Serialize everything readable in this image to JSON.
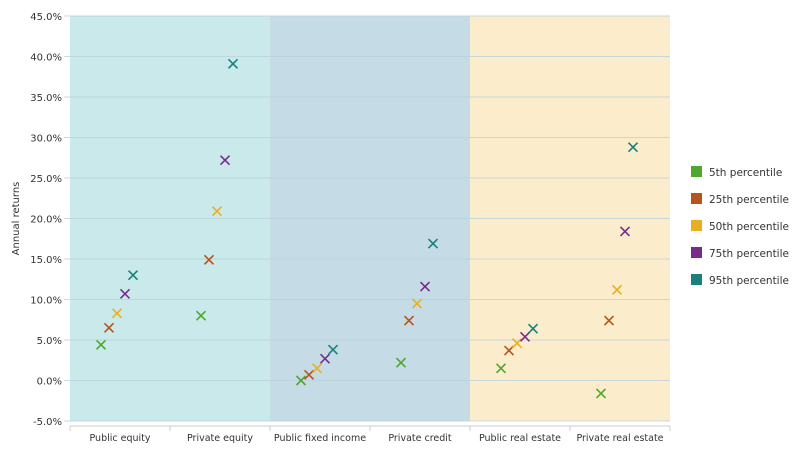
{
  "chart_data": {
    "type": "scatter",
    "title": "",
    "xlabel": "",
    "ylabel": "Annual returns",
    "ylim": [
      -5,
      45
    ],
    "yticks": [
      -5,
      0,
      5,
      10,
      15,
      20,
      25,
      30,
      35,
      40,
      45
    ],
    "ytick_format": "percent-1dp",
    "grid": "horizontal",
    "legend_position": "right",
    "marker": "x",
    "categories": [
      "Public equity",
      "Private equity",
      "Public fixed income",
      "Private credit",
      "Public real estate",
      "Private real estate"
    ],
    "category_groups": [
      {
        "categories": [
          "Public equity",
          "Private equity"
        ],
        "color": "#c9e9ea"
      },
      {
        "categories": [
          "Public fixed income",
          "Private credit"
        ],
        "color": "#c5dbe6"
      },
      {
        "categories": [
          "Public real estate",
          "Private real estate"
        ],
        "color": "#fbeccb"
      }
    ],
    "series": [
      {
        "name": "5th percentile",
        "color": "#4ea72e",
        "values": [
          4.4,
          8.0,
          0.0,
          2.2,
          1.5,
          -1.6
        ]
      },
      {
        "name": "25th percentile",
        "color": "#b5541c",
        "values": [
          6.5,
          14.9,
          0.7,
          7.4,
          3.7,
          7.4
        ]
      },
      {
        "name": "50th percentile",
        "color": "#e8b020",
        "values": [
          8.3,
          20.9,
          1.5,
          9.5,
          4.6,
          11.2
        ]
      },
      {
        "name": "75th percentile",
        "color": "#7a2a8e",
        "values": [
          10.7,
          27.2,
          2.7,
          11.6,
          5.4,
          18.4
        ]
      },
      {
        "name": "95th percentile",
        "color": "#1b7f7a",
        "values": [
          13.0,
          39.1,
          3.8,
          16.9,
          6.4,
          28.8
        ]
      }
    ]
  }
}
